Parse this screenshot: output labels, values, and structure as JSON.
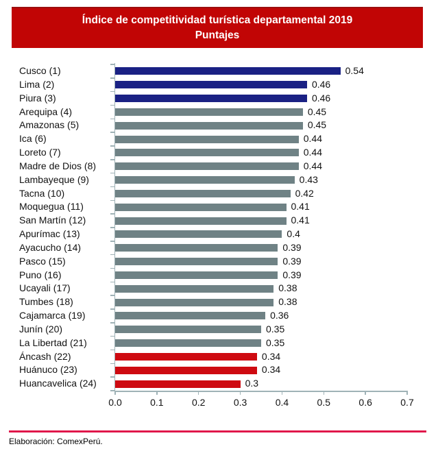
{
  "title": {
    "line1": "Índice de competitividad turística departamental 2019",
    "line2": "Puntajes"
  },
  "footer": {
    "source": "Elaboración: ComexPerú."
  },
  "colors": {
    "banner": "#c10505",
    "banner_top_edge": "#9c0f0f",
    "axis": "#9fb2b6",
    "divider": "#e0164a",
    "text": "#111111",
    "title_text": "#ffffff"
  },
  "chart_data": {
    "type": "bar",
    "orientation": "horizontal",
    "title": "Índice de competitividad turística departamental 2019",
    "subtitle": "Puntajes",
    "xlabel": "",
    "ylabel": "",
    "xlim": [
      0,
      0.7
    ],
    "grid": "off",
    "legend": "none",
    "x_ticks": [
      "0.0",
      "0.1",
      "0.2",
      "0.3",
      "0.4",
      "0.5",
      "0.6",
      "0.7"
    ],
    "categories": [
      "Cusco (1)",
      "Lima (2)",
      "Piura (3)",
      "Arequipa (4)",
      "Amazonas (5)",
      "Ica (6)",
      "Loreto (7)",
      "Madre de Dios (8)",
      "Lambayeque (9)",
      "Tacna (10)",
      "Moquegua (11)",
      "San Martín (12)",
      "Apurímac (13)",
      "Ayacucho (14)",
      "Pasco (15)",
      "Puno (16)",
      "Ucayali (17)",
      "Tumbes (18)",
      "Cajamarca (19)",
      "Junín (20)",
      "La Libertad (21)",
      "Áncash (22)",
      "Huánuco (23)",
      "Huancavelica (24)"
    ],
    "values": [
      0.54,
      0.46,
      0.46,
      0.45,
      0.45,
      0.44,
      0.44,
      0.44,
      0.43,
      0.42,
      0.41,
      0.41,
      0.4,
      0.39,
      0.39,
      0.39,
      0.38,
      0.38,
      0.36,
      0.35,
      0.35,
      0.34,
      0.34,
      0.3
    ],
    "value_labels": [
      "0.54",
      "0.46",
      "0.46",
      "0.45",
      "0.45",
      "0.44",
      "0.44",
      "0.44",
      "0.43",
      "0.42",
      "0.41",
      "0.41",
      "0.4",
      "0.39",
      "0.39",
      "0.39",
      "0.38",
      "0.38",
      "0.36",
      "0.35",
      "0.35",
      "0.34",
      "0.34",
      "0.3"
    ],
    "bar_groups": [
      "top",
      "top",
      "top",
      "mid",
      "mid",
      "mid",
      "mid",
      "mid",
      "mid",
      "mid",
      "mid",
      "mid",
      "mid",
      "mid",
      "mid",
      "mid",
      "mid",
      "mid",
      "mid",
      "mid",
      "mid",
      "bottom",
      "bottom",
      "bottom"
    ],
    "color_map": {
      "top": "#1a2184",
      "mid": "#6f8285",
      "bottom": "#ce0a11"
    }
  }
}
